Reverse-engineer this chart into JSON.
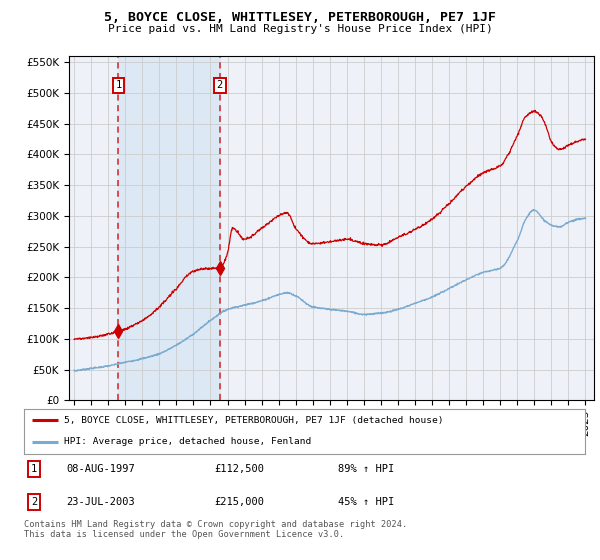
{
  "title": "5, BOYCE CLOSE, WHITTLESEY, PETERBOROUGH, PE7 1JF",
  "subtitle": "Price paid vs. HM Land Registry's House Price Index (HPI)",
  "legend_property": "5, BOYCE CLOSE, WHITTLESEY, PETERBOROUGH, PE7 1JF (detached house)",
  "legend_hpi": "HPI: Average price, detached house, Fenland",
  "transaction1_date": "08-AUG-1997",
  "transaction1_price": "£112,500",
  "transaction1_hpi": "89% ↑ HPI",
  "transaction1_year": 1997.6,
  "transaction1_value": 112500,
  "transaction2_date": "23-JUL-2003",
  "transaction2_price": "£215,000",
  "transaction2_hpi": "45% ↑ HPI",
  "transaction2_year": 2003.55,
  "transaction2_value": 215000,
  "copyright": "Contains HM Land Registry data © Crown copyright and database right 2024.\nThis data is licensed under the Open Government Licence v3.0.",
  "background_color": "#ffffff",
  "plot_bg_color": "#eef2f8",
  "red_line_color": "#cc0000",
  "blue_line_color": "#7aaad0",
  "shade_color": "#dce8f4",
  "grid_color": "#cccccc",
  "ylim": [
    0,
    560000
  ],
  "xlim_left": 1994.7,
  "xlim_right": 2025.5,
  "hpi_knots_x": [
    1995.0,
    1996.0,
    1997.0,
    1998.0,
    1999.0,
    2000.0,
    2001.0,
    2002.0,
    2003.0,
    2004.0,
    2005.0,
    2006.0,
    2007.0,
    2007.5,
    2008.0,
    2009.0,
    2010.0,
    2011.0,
    2012.0,
    2013.0,
    2014.0,
    2015.0,
    2016.0,
    2017.0,
    2018.0,
    2019.0,
    2020.0,
    2021.0,
    2021.5,
    2022.0,
    2022.5,
    2023.0,
    2023.5,
    2024.0,
    2025.0
  ],
  "hpi_knots_y": [
    48000,
    52000,
    56000,
    62000,
    68000,
    76000,
    90000,
    108000,
    130000,
    148000,
    155000,
    162000,
    172000,
    175000,
    170000,
    152000,
    148000,
    145000,
    140000,
    142000,
    148000,
    158000,
    168000,
    182000,
    196000,
    208000,
    215000,
    260000,
    295000,
    310000,
    295000,
    285000,
    282000,
    290000,
    296000
  ],
  "red_knots_x": [
    1995.0,
    1996.0,
    1997.0,
    1997.6,
    1998.0,
    1999.0,
    2000.0,
    2001.0,
    2002.0,
    2003.0,
    2003.55,
    2004.0,
    2004.3,
    2005.0,
    2006.0,
    2007.0,
    2007.5,
    2008.0,
    2009.0,
    2010.0,
    2011.0,
    2012.0,
    2013.0,
    2014.0,
    2015.0,
    2016.0,
    2017.0,
    2018.0,
    2019.0,
    2020.0,
    2021.0,
    2021.5,
    2022.0,
    2022.3,
    2022.7,
    2023.0,
    2023.5,
    2024.0,
    2025.0
  ],
  "red_knots_y": [
    100000,
    102000,
    108000,
    112500,
    116000,
    130000,
    152000,
    182000,
    210000,
    215000,
    215000,
    240000,
    280000,
    262000,
    280000,
    300000,
    305000,
    280000,
    255000,
    258000,
    262000,
    255000,
    253000,
    265000,
    278000,
    295000,
    320000,
    348000,
    370000,
    382000,
    430000,
    462000,
    470000,
    465000,
    445000,
    420000,
    408000,
    415000,
    425000
  ]
}
